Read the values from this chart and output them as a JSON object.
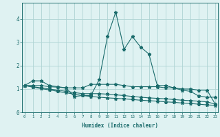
{
  "xlabel": "Humidex (Indice chaleur)",
  "x": [
    0,
    1,
    2,
    3,
    4,
    5,
    6,
    7,
    8,
    9,
    10,
    11,
    12,
    13,
    14,
    15,
    16,
    17,
    18,
    19,
    20,
    21,
    22,
    23
  ],
  "line1": [
    1.15,
    1.35,
    1.35,
    1.15,
    1.1,
    1.05,
    0.68,
    0.72,
    0.72,
    1.4,
    3.25,
    4.3,
    2.7,
    3.25,
    2.8,
    2.5,
    1.15,
    1.15,
    1.05,
    0.95,
    0.9,
    0.7,
    0.65,
    0.65
  ],
  "line2": [
    1.15,
    1.15,
    1.15,
    1.1,
    1.08,
    1.05,
    1.05,
    1.05,
    1.2,
    1.2,
    1.2,
    1.2,
    1.15,
    1.1,
    1.1,
    1.1,
    1.1,
    1.05,
    1.05,
    1.0,
    1.0,
    0.95,
    0.95,
    0.35
  ],
  "line3": [
    1.15,
    1.1,
    1.05,
    1.0,
    0.95,
    0.9,
    0.85,
    0.8,
    0.8,
    0.8,
    0.78,
    0.75,
    0.72,
    0.68,
    0.65,
    0.62,
    0.6,
    0.58,
    0.55,
    0.52,
    0.5,
    0.48,
    0.45,
    0.35
  ],
  "line4": [
    1.15,
    1.08,
    1.02,
    0.96,
    0.9,
    0.84,
    0.78,
    0.72,
    0.68,
    0.65,
    0.62,
    0.6,
    0.58,
    0.55,
    0.52,
    0.5,
    0.48,
    0.45,
    0.43,
    0.4,
    0.38,
    0.35,
    0.32,
    0.3
  ],
  "bg_color": "#dff2f2",
  "grid_color": "#aed4d4",
  "line_color": "#1a6b6b",
  "ylim": [
    0,
    4.7
  ],
  "yticks": [
    0,
    1,
    2,
    3,
    4
  ],
  "xlim": [
    -0.3,
    23.3
  ]
}
